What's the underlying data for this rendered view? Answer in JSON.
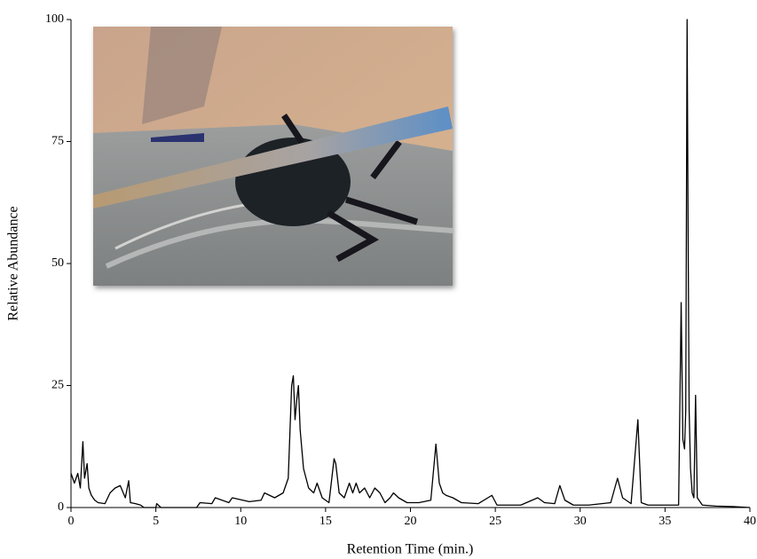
{
  "chart_data": {
    "type": "line",
    "x_label": "Retention Time (min.)",
    "y_label": "Relative Abundance",
    "color": "#000000",
    "x": [
      0,
      0.2,
      0.4,
      0.55,
      0.7,
      0.8,
      0.95,
      1.05,
      1.2,
      1.4,
      1.6,
      2.0,
      2.3,
      2.6,
      2.9,
      3.2,
      3.4,
      3.5,
      3.8,
      4.1,
      4.3,
      5.0,
      5.05,
      5.3,
      7.4,
      7.6,
      8.3,
      8.5,
      9.3,
      9.5,
      10.5,
      11.2,
      11.4,
      12.0,
      12.5,
      12.8,
      13.0,
      13.1,
      13.2,
      13.3,
      13.4,
      13.5,
      13.7,
      14.0,
      14.3,
      14.5,
      14.8,
      15.2,
      15.5,
      15.6,
      15.8,
      16.1,
      16.4,
      16.6,
      16.8,
      17.0,
      17.3,
      17.6,
      17.9,
      18.2,
      18.5,
      18.8,
      19.0,
      19.3,
      19.8,
      20.5,
      21.2,
      21.5,
      21.7,
      21.9,
      22.1,
      22.5,
      23.0,
      24.0,
      24.8,
      25.1,
      26.5,
      27.5,
      27.9,
      28.5,
      28.8,
      29.1,
      29.6,
      30.5,
      31.8,
      32.2,
      32.5,
      33.0,
      33.4,
      33.6,
      34.0,
      35.0,
      35.8,
      35.95,
      36.05,
      36.15,
      36.22,
      36.3,
      36.36,
      36.42,
      36.5,
      36.6,
      36.7,
      36.8,
      36.9,
      37.2,
      38.0,
      39.0,
      40.0
    ],
    "values": [
      7,
      5,
      7,
      4,
      13.5,
      6,
      9,
      4,
      2.5,
      1.5,
      1,
      0.8,
      3,
      4,
      4.5,
      2,
      5.5,
      1,
      0.8,
      0.5,
      0,
      0,
      0.8,
      0,
      0,
      1,
      0.8,
      2,
      1,
      2,
      1.2,
      1.5,
      3,
      2,
      3,
      6,
      25,
      27,
      18,
      22,
      25,
      16,
      8,
      4,
      3,
      5,
      2,
      1,
      10,
      9,
      3,
      2,
      5,
      3,
      5,
      3,
      4,
      2,
      4,
      3,
      1,
      2,
      3,
      2,
      1,
      1,
      1.5,
      13,
      5,
      3,
      2.5,
      2,
      1,
      0.8,
      2.5,
      0.5,
      0.5,
      2,
      1,
      0.8,
      4.5,
      1.5,
      0.5,
      0.5,
      1,
      6,
      2,
      0.8,
      18,
      1,
      0.5,
      0.5,
      0.5,
      42,
      14,
      12,
      20,
      100,
      56,
      20,
      8,
      3,
      2,
      23,
      2,
      0.5,
      0.3,
      0.2,
      0
    ],
    "xlim": [
      0,
      40
    ],
    "xticks": [
      0,
      5,
      10,
      15,
      20,
      25,
      30,
      35,
      40
    ],
    "ylim": [
      0,
      100
    ],
    "yticks": [
      0,
      25,
      50,
      75,
      100
    ]
  }
}
